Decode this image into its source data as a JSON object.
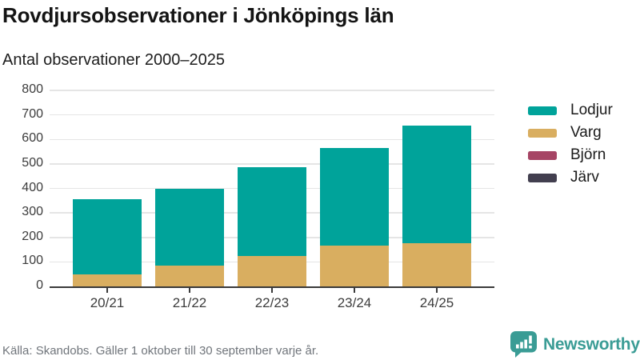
{
  "header": {
    "title": "Rovdjursobservationer i Jönköpings län",
    "subtitle": "Antal observationer 2000–2025"
  },
  "chart_data": {
    "type": "bar",
    "stacked": true,
    "title": "Rovdjursobservationer i Jönköpings län",
    "subtitle": "Antal observationer 2000–2025",
    "categories": [
      "20/21",
      "21/22",
      "22/23",
      "23/24",
      "24/25"
    ],
    "series": [
      {
        "name": "Lodjur",
        "color": "#00a39a",
        "values": [
          305,
          315,
          360,
          400,
          480
        ]
      },
      {
        "name": "Varg",
        "color": "#d9ae60",
        "values": [
          50,
          85,
          125,
          165,
          175
        ]
      },
      {
        "name": "Björn",
        "color": "#a64565",
        "values": [
          0,
          0,
          0,
          0,
          0
        ]
      },
      {
        "name": "Järv",
        "color": "#423f4f",
        "values": [
          0,
          0,
          0,
          0,
          0
        ]
      }
    ],
    "totals": [
      355,
      400,
      485,
      565,
      655
    ],
    "xlabel": "",
    "ylabel": "",
    "ylim": [
      0,
      800
    ],
    "ytick_step": 100,
    "grid": true,
    "legend_position": "right"
  },
  "footer": {
    "source": "Källa: Skandobs. Gäller 1 oktober till 30 september varje år.",
    "brand": "Newsworthy"
  },
  "icons": {
    "brand": "bar-chart-speech-bubble-icon"
  },
  "colors": {
    "lodjur_teal": "#00a39a",
    "varg_gold": "#d9ae60",
    "bjorn_maroon": "#a64565",
    "jarv_dark": "#423f4f",
    "brand_teal": "#3a9c95",
    "axis_text": "#3c3c3c",
    "grid_line": "#e5e5e5",
    "footer_text": "#70757b"
  }
}
